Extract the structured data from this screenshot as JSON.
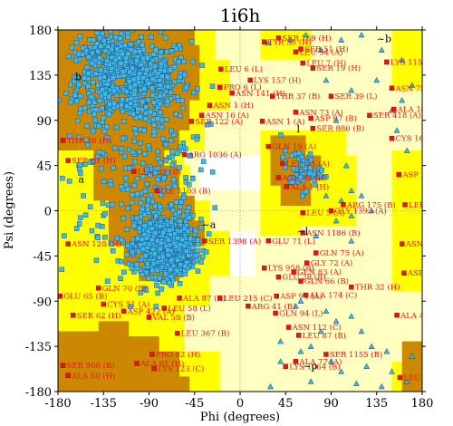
{
  "chart_data": {
    "type": "scatter",
    "title": "1i6h",
    "xlabel": "Phi (degrees)",
    "ylabel": "Psi (degrees)",
    "xlim": [
      -180,
      180
    ],
    "ylim": [
      -180,
      180
    ],
    "xticks": [
      -180,
      -135,
      -90,
      -45,
      0,
      45,
      90,
      135,
      180
    ],
    "yticks": [
      -180,
      -135,
      -90,
      -45,
      0,
      45,
      90,
      135,
      180
    ],
    "xtick_labels": [
      "-180",
      "-135",
      "-90",
      "-45",
      "0",
      "45",
      "90",
      "135",
      "180"
    ],
    "ytick_labels": [
      "-180",
      "-135",
      "-90",
      "-45",
      "0",
      "45",
      "90",
      "135",
      "180"
    ],
    "region_labels": [
      {
        "text": "a",
        "x": -160,
        "y": 28
      },
      {
        "text": "b",
        "x": -163,
        "y": 130
      },
      {
        "text": "~b",
        "x": 135,
        "y": 168
      },
      {
        "text": "~a",
        "x": -38,
        "y": -17
      },
      {
        "text": "l",
        "x": 56,
        "y": 78
      },
      {
        "text": "~l",
        "x": 56,
        "y": -24
      },
      {
        "text": "~p",
        "x": 62,
        "y": -158
      }
    ],
    "colors": {
      "core": "#cc8800",
      "allowed": "#ffff00",
      "generous": "#ffffc0",
      "disallowed": "#ffffff",
      "core_point_fill": "#42b8e8",
      "core_point_edge": "#1a5a8a",
      "outlier": "#e8121c",
      "gly": "#42b8e8"
    },
    "series": [
      {
        "marker": "square",
        "color": "#42b8e8",
        "description_clusters": [
          {
            "cx": -105,
            "cy": 130,
            "sx": 28,
            "sy": 22,
            "n": 520
          },
          {
            "cx": -75,
            "cy": -35,
            "sx": 14,
            "sy": 15,
            "n": 820
          },
          {
            "cx": -65,
            "cy": -42,
            "sx": 8,
            "sy": 7,
            "n": 350
          },
          {
            "cx": -130,
            "cy": 155,
            "sx": 18,
            "sy": 14,
            "n": 140
          },
          {
            "cx": -85,
            "cy": 40,
            "sx": 22,
            "sy": 45,
            "n": 170
          },
          {
            "cx": -140,
            "cy": 40,
            "sx": 18,
            "sy": 60,
            "n": 70
          },
          {
            "cx": 60,
            "cy": 40,
            "sx": 10,
            "sy": 10,
            "n": 55
          }
        ]
      }
    ],
    "outliers": [
      {
        "label": "SER 169 (H)",
        "x": 38,
        "y": 172
      },
      {
        "label": "TYR 55 (H)",
        "x": 24,
        "y": 168
      },
      {
        "label": "SER 51 (H)",
        "x": 60,
        "y": 161
      },
      {
        "label": "LEU 54 (A)",
        "x": 55,
        "y": 158
      },
      {
        "label": "LEU 7 (H)",
        "x": 62,
        "y": 147
      },
      {
        "label": "SER 19 (H)",
        "x": 72,
        "y": 142
      },
      {
        "label": "LYS 1152 (A)",
        "x": 145,
        "y": 148
      },
      {
        "label": "LEU 6 (L)",
        "x": -19,
        "y": 141
      },
      {
        "label": "LYS 157 (H)",
        "x": 10,
        "y": 130
      },
      {
        "label": "ASN 75 (A)",
        "x": 150,
        "y": 122
      },
      {
        "label": "SER 39 (L)",
        "x": 90,
        "y": 114
      },
      {
        "label": "PRO 6 (L)",
        "x": -20,
        "y": 123
      },
      {
        "label": "THR 37 (B)",
        "x": 32,
        "y": 114
      },
      {
        "label": "ASN 141 (H)",
        "x": -8,
        "y": 117
      },
      {
        "label": "ALA 140 (H)",
        "x": 152,
        "y": 101
      },
      {
        "label": "ASN 1 (H)",
        "x": -30,
        "y": 105
      },
      {
        "label": "ASN 16 (A)",
        "x": -38,
        "y": 95
      },
      {
        "label": "SER 418 (A)",
        "x": 128,
        "y": 95
      },
      {
        "label": "ASN 73 (A)",
        "x": 55,
        "y": 98
      },
      {
        "label": "SER 122 (A)",
        "x": -48,
        "y": 89
      },
      {
        "label": "ASP 97 (B)",
        "x": 70,
        "y": 92
      },
      {
        "label": "ASN 1 (A)",
        "x": 22,
        "y": 89
      },
      {
        "label": "SER 880 (B)",
        "x": 72,
        "y": 82
      },
      {
        "label": "THR 36 (H)",
        "x": -175,
        "y": 70
      },
      {
        "label": "CYS 167 (A)",
        "x": 150,
        "y": 72
      },
      {
        "label": "ARG 1036 (A)",
        "x": -55,
        "y": 56
      },
      {
        "label": "GLN 19 (A)",
        "x": 28,
        "y": 64
      },
      {
        "label": "SER 61 (H)",
        "x": -170,
        "y": 50
      },
      {
        "label": "LEU 55 (A)",
        "x": 42,
        "y": 47
      },
      {
        "label": "LEU 30 (B)",
        "x": -105,
        "y": 39
      },
      {
        "label": "ASP 1223 (A)",
        "x": 157,
        "y": 36
      },
      {
        "label": "ALA 1 (H)",
        "x": 46,
        "y": 24
      },
      {
        "label": "ASN 90 (H)",
        "x": 38,
        "y": 33
      },
      {
        "label": "ILE 1103 (B)",
        "x": -82,
        "y": 20
      },
      {
        "label": "ARG 175 (B)",
        "x": 102,
        "y": 6
      },
      {
        "label": "LEU 598 (A)",
        "x": 163,
        "y": 6
      },
      {
        "label": "GLY 1393 (A)",
        "x": 90,
        "y": 0
      },
      {
        "label": "LEU 5 (A)",
        "x": 62,
        "y": -2
      },
      {
        "label": "ASN 1186 (B)",
        "x": 62,
        "y": -22
      },
      {
        "label": "SER 1398 (A)",
        "x": -35,
        "y": -30
      },
      {
        "label": "GLU 71 (L)",
        "x": 28,
        "y": -30
      },
      {
        "label": "ASN 128 (H)",
        "x": -170,
        "y": -33
      },
      {
        "label": "ASN 1176 (B)",
        "x": 160,
        "y": -33
      },
      {
        "label": "GLN 75 (A)",
        "x": 75,
        "y": -42
      },
      {
        "label": "GLY 72 (A)",
        "x": 66,
        "y": -52
      },
      {
        "label": "LYS 958 (B)",
        "x": 24,
        "y": -57
      },
      {
        "label": "GLN 83 (A)",
        "x": 53,
        "y": -61
      },
      {
        "label": "ASP 55 (A)",
        "x": 162,
        "y": -62
      },
      {
        "label": "GLU 28 (B)",
        "x": 38,
        "y": -66
      },
      {
        "label": "GLN 66 (B)",
        "x": 60,
        "y": -70
      },
      {
        "label": "GLN 70 (B)",
        "x": -140,
        "y": -77
      },
      {
        "label": "THR 32 (H)",
        "x": 110,
        "y": -76
      },
      {
        "label": "GLU 65 (B)",
        "x": -178,
        "y": -85
      },
      {
        "label": "ALA 87 (A)",
        "x": -60,
        "y": -87
      },
      {
        "label": "LEU 215 (C)",
        "x": -20,
        "y": -87
      },
      {
        "label": "ASP 94 (A)",
        "x": 36,
        "y": -85
      },
      {
        "label": "ALA 174 (C)",
        "x": 65,
        "y": -84
      },
      {
        "label": "CYS 51 (A)",
        "x": -135,
        "y": -93
      },
      {
        "label": "ARG 41 (B)",
        "x": 8,
        "y": -95
      },
      {
        "label": "LEU 58 (L)",
        "x": -75,
        "y": -97
      },
      {
        "label": "ASP 422 (A)",
        "x": -115,
        "y": -100
      },
      {
        "label": "VAL 58 (B)",
        "x": -90,
        "y": -106
      },
      {
        "label": "GLN 94 (L)",
        "x": 35,
        "y": -102
      },
      {
        "label": "SER 62 (H)",
        "x": -165,
        "y": -104
      },
      {
        "label": "ALA 48 (A)",
        "x": 155,
        "y": -104
      },
      {
        "label": "LEU 367 (B)",
        "x": -62,
        "y": -122
      },
      {
        "label": "ASN 112 (C)",
        "x": 48,
        "y": -116
      },
      {
        "label": "LEU 87 (B)",
        "x": 58,
        "y": -124
      },
      {
        "label": "SER 1155 (B)",
        "x": 85,
        "y": -143
      },
      {
        "label": "PRO 82 (H)",
        "x": -87,
        "y": -143
      },
      {
        "label": "SER 900 (B)",
        "x": -175,
        "y": -154
      },
      {
        "label": "ALA 77 (A)",
        "x": 55,
        "y": -150
      },
      {
        "label": "ALA 61 (H)",
        "x": -102,
        "y": -152
      },
      {
        "label": "LYS 1064 (B)",
        "x": 45,
        "y": -155
      },
      {
        "label": "LYS 123 (C)",
        "x": -85,
        "y": -157
      },
      {
        "label": "ALA 50 (H)",
        "x": -170,
        "y": -164
      },
      {
        "label": "LEU 27 (L)",
        "x": 158,
        "y": -166
      }
    ],
    "gly_triangles": [
      [
        28,
        167
      ],
      [
        65,
        175
      ],
      [
        100,
        170
      ],
      [
        120,
        175
      ],
      [
        160,
        150
      ],
      [
        170,
        125
      ],
      [
        150,
        100
      ],
      [
        165,
        60
      ],
      [
        105,
        45
      ],
      [
        110,
        20
      ],
      [
        120,
        15
      ],
      [
        100,
        10
      ],
      [
        85,
        15
      ],
      [
        130,
        0
      ],
      [
        95,
        -10
      ],
      [
        75,
        -25
      ],
      [
        110,
        -30
      ],
      [
        110,
        -5
      ],
      [
        60,
        -90
      ],
      [
        55,
        -95
      ],
      [
        85,
        -100
      ],
      [
        95,
        -110
      ],
      [
        110,
        -105
      ],
      [
        120,
        -120
      ],
      [
        130,
        -135
      ],
      [
        70,
        -135
      ],
      [
        60,
        -140
      ],
      [
        40,
        -150
      ],
      [
        90,
        -150
      ],
      [
        100,
        -160
      ],
      [
        150,
        -160
      ],
      [
        165,
        -170
      ],
      [
        140,
        -175
      ],
      [
        115,
        -172
      ],
      [
        30,
        -175
      ],
      [
        70,
        -170
      ],
      [
        170,
        -145
      ],
      [
        145,
        -140
      ],
      [
        125,
        -155
      ],
      [
        80,
        -120
      ],
      [
        40,
        -130
      ],
      [
        160,
        110
      ],
      [
        155,
        80
      ],
      [
        110,
        120
      ],
      [
        135,
        130
      ],
      [
        80,
        160
      ],
      [
        50,
        170
      ],
      [
        85,
        130
      ],
      [
        95,
        90
      ],
      [
        140,
        160
      ]
    ]
  }
}
